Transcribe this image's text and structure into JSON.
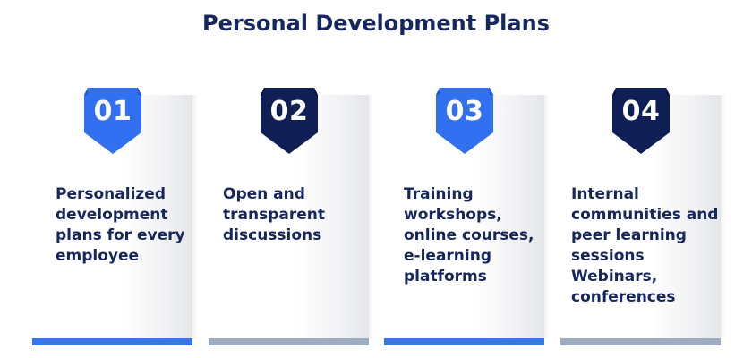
{
  "page": {
    "title": "Personal Development Plans"
  },
  "colors": {
    "navy": "#16265e",
    "blue": "#3776ee",
    "grey_bar": "#9dadbf",
    "badge_blue": "#3170f0",
    "badge_navy": "#0f1f55"
  },
  "cards": [
    {
      "number": "01",
      "text": "Personalized development plans for every employee",
      "badge_style": "blue",
      "bar_style": "blue"
    },
    {
      "number": "02",
      "text": "Open and transparent discussions",
      "badge_style": "navy",
      "bar_style": "grey"
    },
    {
      "number": "03",
      "text": "Training workshops, online courses, e-learning platforms",
      "badge_style": "blue",
      "bar_style": "blue"
    },
    {
      "number": "04",
      "text": "Internal communities and peer learning sessions Webinars, conferences",
      "badge_style": "navy",
      "bar_style": "grey"
    }
  ]
}
